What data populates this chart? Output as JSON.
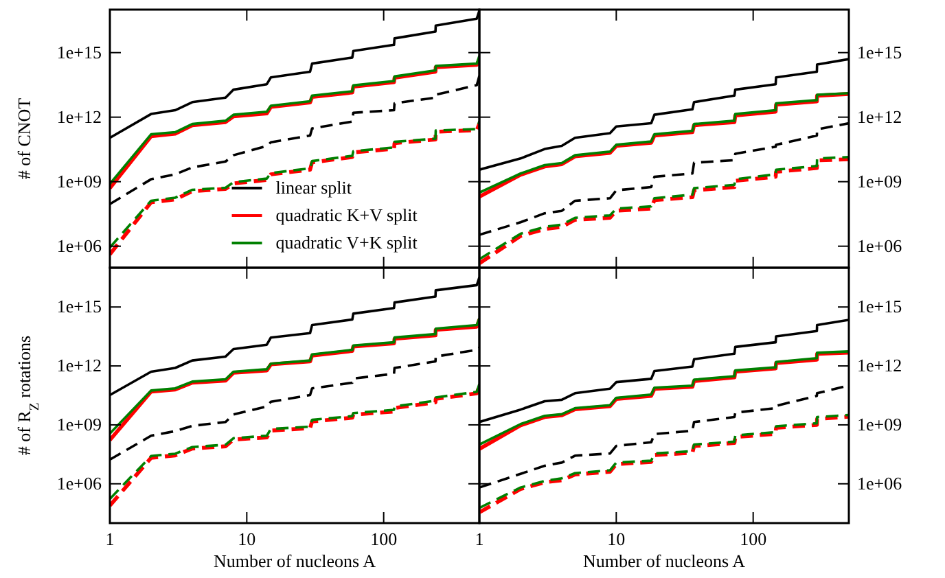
{
  "chart_data": [
    {
      "type": "line",
      "ylabel": "# of CNOT",
      "log": "xy",
      "xlim": [
        1,
        500
      ],
      "ylim": [
        100000.0,
        1e+17
      ],
      "xticks": [
        1,
        10,
        100
      ],
      "yticks": [
        {
          "value": 1000000.0,
          "label": "1e+06"
        },
        {
          "value": 1000000000.0,
          "label": "1e+09"
        },
        {
          "value": 1000000000000.0,
          "label": "1e+12"
        },
        {
          "value": 1000000000000000.0,
          "label": "1e+15"
        }
      ],
      "tick_labels": "y",
      "legend": "bottom",
      "x": [
        1,
        2,
        3,
        4,
        7,
        8,
        14,
        15,
        29,
        30,
        59,
        60,
        119,
        120,
        239,
        240,
        479,
        500
      ],
      "series": [
        {
          "name": "linear split",
          "color": "#000000",
          "values": [
            110000000000.0,
            1400000000000.0,
            2100000000000.0,
            5000000000000.0,
            8100000000000.0,
            19000000000000.0,
            34000000000000.0,
            71000000000000.0,
            130000000000000.0,
            310000000000000.0,
            590000000000000.0,
            1200000000000000.0,
            2300000000000000.0,
            4600000000000000.0,
            9500000000000000.0,
            1.8e+16,
            3.8e+16,
            8.9e+16
          ]
        },
        {
          "name": "quadratic K+V split",
          "color": "#ff0000",
          "values": [
            500000000.0,
            130000000000.0,
            170000000000.0,
            420000000000.0,
            590000000000.0,
            1100000000000.0,
            1500000000000.0,
            3000000000000.0,
            4800000000000.0,
            8700000000000.0,
            14000000000000.0,
            26000000000000.0,
            42000000000000.0,
            68000000000000.0,
            130000000000000.0,
            210000000000000.0,
            270000000000000.0,
            500000000000000.0
          ]
        },
        {
          "name": "quadratic V+K split",
          "color": "#008000",
          "values": [
            790000000.0,
            160000000000.0,
            200000000000.0,
            480000000000.0,
            680000000000.0,
            1300000000000.0,
            1800000000000.0,
            3400000000000.0,
            5500000000000.0,
            10000000000000.0,
            16000000000000.0,
            30000000000000.0,
            48000000000000.0,
            78000000000000.0,
            150000000000000.0,
            240000000000000.0,
            310000000000000.0,
            710000000000000.0
          ]
        },
        {
          "color": "#000000",
          "line_style": "dashed",
          "values": [
            91000000.0,
            1300000000.0,
            2200000000.0,
            4600000000.0,
            8700000000.0,
            17000000000.0,
            46000000000.0,
            68000000000.0,
            140000000000.0,
            300000000000.0,
            620000000000.0,
            1600000000000.0,
            2100000000000.0,
            4400000000000.0,
            8100000000000.0,
            11000000000000.0,
            31000000000000.0,
            83000000000000.0
          ]
        },
        {
          "color": "#ff0000",
          "line_style": "dashed",
          "values": [
            420000.0,
            110000000.0,
            150000000.0,
            360000000.0,
            460000000.0,
            830000000.0,
            1200000000.0,
            2200000000.0,
            3600000000.0,
            7900000000.0,
            14000000000.0,
            23000000000.0,
            34000000000.0,
            62000000000.0,
            91000000000.0,
            210000000000.0,
            250000000000.0,
            500000000000.0
          ]
        },
        {
          "color": "#008000",
          "line_style": "dashed",
          "values": [
            870000.0,
            130000000.0,
            180000000.0,
            420000000.0,
            520000000.0,
            950000000.0,
            1400000000.0,
            2500000000.0,
            4200000000.0,
            9100000000.0,
            16000000000.0,
            26000000000.0,
            39000000000.0,
            71000000000.0,
            100000000000.0,
            240000000000.0,
            280000000000.0,
            650000000000.0
          ]
        }
      ]
    },
    {
      "type": "line",
      "log": "xy",
      "xlim": [
        1,
        500
      ],
      "ylim": [
        100000.0,
        1e+17
      ],
      "xticks": [
        1,
        10,
        100
      ],
      "yticks": [
        {
          "value": 1000000.0,
          "label": "1e+06"
        },
        {
          "value": 1000000000.0,
          "label": "1e+09"
        },
        {
          "value": 1000000000000.0,
          "label": "1e+12"
        },
        {
          "value": 1000000000000000.0,
          "label": "1e+15"
        }
      ],
      "tick_labels": "y",
      "x": [
        1,
        2,
        3,
        4,
        5,
        9,
        10,
        18,
        19,
        36,
        37,
        73,
        74,
        146,
        147,
        292,
        293,
        500
      ],
      "series": [
        {
          "color": "#000000",
          "values": [
            3600000000.0,
            12000000000.0,
            33000000000.0,
            46000000000.0,
            110000000000.0,
            180000000000.0,
            370000000000.0,
            520000000000.0,
            1300000000000.0,
            2300000000000.0,
            5000000000000.0,
            10000000000000.0,
            19000000000000.0,
            34000000000000.0,
            71000000000000.0,
            130000000000000.0,
            280000000000000.0,
            500000000000000.0
          ]
        },
        {
          "color": "#ff0000",
          "values": [
            200000000.0,
            2100000000.0,
            5100000000.0,
            6500000000.0,
            15000000000.0,
            22000000000.0,
            46000000000.0,
            65000000000.0,
            140000000000.0,
            200000000000.0,
            420000000000.0,
            590000000000.0,
            1200000000000.0,
            1800000000000.0,
            3800000000000.0,
            5400000000000.0,
            10000000000000.0,
            12000000000000.0
          ]
        },
        {
          "color": "#008000",
          "values": [
            310000000.0,
            2400000000.0,
            5900000000.0,
            7400000000.0,
            17000000000.0,
            25000000000.0,
            52000000000.0,
            74000000000.0,
            160000000000.0,
            230000000000.0,
            480000000000.0,
            680000000000.0,
            1400000000000.0,
            2100000000000.0,
            4400000000000.0,
            6200000000000.0,
            11000000000000.0,
            13000000000000.0
          ]
        },
        {
          "color": "#000000",
          "line_style": "dashed",
          "values": [
            3400000.0,
            13000000.0,
            34000000.0,
            44000000.0,
            130000000.0,
            170000000.0,
            400000000.0,
            560000000.0,
            1700000000.0,
            2400000000.0,
            7600000000.0,
            10000000000.0,
            20000000000.0,
            42000000000.0,
            52000000000.0,
            140000000000.0,
            270000000000.0,
            520000000000.0
          ]
        },
        {
          "color": "#ff0000",
          "line_style": "dashed",
          "values": [
            160000.0,
            3000000.0,
            6300000.0,
            7900000.0,
            17000000.0,
            21000000.0,
            45000000.0,
            56000000.0,
            140000000.0,
            190000000.0,
            400000000.0,
            560000000.0,
            1100000000.0,
            1700000000.0,
            2900000000.0,
            4300000000.0,
            9800000000.0,
            11000000000.0
          ]
        },
        {
          "color": "#008000",
          "line_style": "dashed",
          "values": [
            250000.0,
            3800000.0,
            7900000.0,
            10000000.0,
            21000000.0,
            27000000.0,
            56000000.0,
            71000000.0,
            170000000.0,
            250000000.0,
            500000000.0,
            710000000.0,
            1300000000.0,
            2200000000.0,
            3600000000.0,
            5400000000.0,
            12000000000.0,
            14000000000.0
          ]
        }
      ]
    },
    {
      "type": "line",
      "xlabel": "Number of nucleons A",
      "ylabel": "# of R$_{Z}$ rotations",
      "log": "xy",
      "xlim": [
        1,
        500
      ],
      "ylim": [
        10000.0,
        1e+17
      ],
      "xticks": [
        1,
        10,
        100
      ],
      "yticks": [
        {
          "value": 1000000.0,
          "label": "1e+06"
        },
        {
          "value": 1000000000.0,
          "label": "1e+09"
        },
        {
          "value": 1000000000000.0,
          "label": "1e+12"
        },
        {
          "value": 1000000000000000.0,
          "label": "1e+15"
        }
      ],
      "x": [
        1,
        2,
        3,
        4,
        7,
        8,
        14,
        15,
        29,
        30,
        59,
        60,
        119,
        120,
        239,
        240,
        479,
        500
      ],
      "series": [
        {
          "color": "#000000",
          "values": [
            33000000000.0,
            510000000000.0,
            790000000000.0,
            1900000000000.0,
            3000000000000.0,
            7200000000000.0,
            12000000000000.0,
            28000000000000.0,
            47000000000000.0,
            120000000000000.0,
            230000000000000.0,
            460000000000000.0,
            890000000000000.0,
            1700000000000000.0,
            3400000000000000.0,
            7100000000000000.0,
            1.3e+16,
            3.2e+16
          ]
        },
        {
          "color": "#ff0000",
          "values": [
            170000000.0,
            49000000000.0,
            63000000000.0,
            140000000000.0,
            180000000000.0,
            450000000000.0,
            590000000000.0,
            1200000000000.0,
            1700000000000.0,
            3400000000000.0,
            5800000000000.0,
            9800000000000.0,
            14000000000000.0,
            24000000000000.0,
            36000000000000.0,
            69000000000000.0,
            100000000000000.0,
            230000000000000.0
          ]
        },
        {
          "color": "#008000",
          "values": [
            360000000.0,
            56000000000.0,
            72000000000.0,
            160000000000.0,
            210000000000.0,
            510000000000.0,
            680000000000.0,
            1300000000000.0,
            1900000000000.0,
            3900000000000.0,
            6600000000000.0,
            11000000000000.0,
            16000000000000.0,
            28000000000000.0,
            42000000000000.0,
            79000000000000.0,
            120000000000000.0,
            270000000000000.0
          ]
        },
        {
          "color": "#000000",
          "line_style": "dashed",
          "values": [
            17000000.0,
            280000000.0,
            480000000.0,
            890000000.0,
            1400000000.0,
            3400000000.0,
            8700000000.0,
            15000000000.0,
            33000000000.0,
            72000000000.0,
            140000000000.0,
            230000000000.0,
            400000000000.0,
            790000000000.0,
            1700000000000.0,
            3000000000000.0,
            6600000000000.0,
            8500000000000.0
          ]
        },
        {
          "color": "#ff0000",
          "line_style": "dashed",
          "values": [
            78000.0,
            21000000.0,
            28000000.0,
            62000000.0,
            81000000.0,
            180000000.0,
            230000000.0,
            510000000.0,
            680000000.0,
            1500000000.0,
            2300000000.0,
            3300000000.0,
            4800000000.0,
            7200000000.0,
            14000000000.0,
            21000000000.0,
            40000000000.0,
            100000000000.0
          ]
        },
        {
          "color": "#008000",
          "line_style": "dashed",
          "values": [
            170000.0,
            26000000.0,
            34000000.0,
            74000000.0,
            98000000.0,
            210000000.0,
            280000000.0,
            620000000.0,
            810000000.0,
            1800000000.0,
            2800000000.0,
            4000000000.0,
            5800000000.0,
            8700000000.0,
            17000000000.0,
            25000000000.0,
            48000000000.0,
            120000000000.0
          ]
        }
      ]
    },
    {
      "type": "line",
      "xlabel": "Number of nucleons A",
      "log": "xy",
      "xlim": [
        1,
        500
      ],
      "ylim": [
        10000.0,
        1e+17
      ],
      "xticks": [
        1,
        10,
        100
      ],
      "yticks": [
        {
          "value": 1000000.0,
          "label": "1e+06"
        },
        {
          "value": 1000000000.0,
          "label": "1e+09"
        },
        {
          "value": 1000000000000.0,
          "label": "1e+12"
        },
        {
          "value": 1000000000000000.0,
          "label": "1e+15"
        }
      ],
      "x": [
        1,
        2,
        3,
        4,
        5,
        9,
        10,
        18,
        19,
        36,
        37,
        73,
        74,
        146,
        147,
        292,
        293,
        500
      ],
      "series": [
        {
          "color": "#000000",
          "values": [
            1400000000.0,
            6000000000.0,
            16000000000.0,
            19000000000.0,
            41000000000.0,
            69000000000.0,
            150000000000.0,
            220000000000.0,
            550000000000.0,
            930000000000.0,
            2200000000000.0,
            4200000000000.0,
            9300000000000.0,
            16000000000000.0,
            32000000000000.0,
            60000000000000.0,
            120000000000000.0,
            220000000000000.0
          ]
        },
        {
          "color": "#ff0000",
          "values": [
            59000000.0,
            950000000.0,
            2500000000.0,
            3100000000.0,
            6200000000.0,
            8900000000.0,
            21000000000.0,
            30000000000.0,
            68000000000.0,
            87000000000.0,
            170000000000.0,
            260000000000.0,
            510000000000.0,
            740000000000.0,
            1400000000000.0,
            2100000000000.0,
            4100000000000.0,
            4800000000000.0
          ]
        },
        {
          "color": "#008000",
          "values": [
            100000000.0,
            1100000000.0,
            2900000000.0,
            3500000000.0,
            7100000000.0,
            10000000000.0,
            24000000000.0,
            35000000000.0,
            78000000000.0,
            100000000000.0,
            200000000000.0,
            300000000000.0,
            590000000000.0,
            850000000000.0,
            1600000000000.0,
            2500000000000.0,
            4700000000000.0,
            5500000000000.0
          ]
        },
        {
          "color": "#000000",
          "line_style": "dashed",
          "values": [
            650000.0,
            3200000.0,
            8300000.0,
            12000000.0,
            27000000.0,
            35000000.0,
            85000000.0,
            130000000.0,
            340000000.0,
            500000000.0,
            1400000000.0,
            2500000000.0,
            4200000000.0,
            7100000000.0,
            9300000000.0,
            30000000000.0,
            41000000000.0,
            100000000000.0
          ]
        },
        {
          "color": "#ff0000",
          "line_style": "dashed",
          "values": [
            35000.0,
            540000.0,
            1200000.0,
            1500000.0,
            3000000.0,
            4100000.0,
            10000000.0,
            13000000.0,
            29000000.0,
            38000000.0,
            83000000.0,
            120000000.0,
            240000000.0,
            350000000.0,
            710000000.0,
            1000000000.0,
            2000000000.0,
            2600000000.0
          ]
        },
        {
          "color": "#008000",
          "line_style": "dashed",
          "values": [
            59000.0,
            650000.0,
            1400000.0,
            1900000.0,
            3500000.0,
            4900000.0,
            12000000.0,
            15000000.0,
            35000000.0,
            46000000.0,
            100000000.0,
            140000000.0,
            290000000.0,
            430000000.0,
            850000000.0,
            1200000000.0,
            2500000000.0,
            3200000000.0
          ]
        }
      ]
    }
  ]
}
